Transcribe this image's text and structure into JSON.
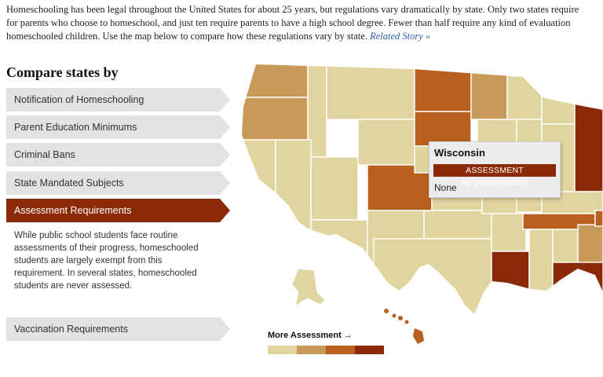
{
  "intro": {
    "line1": "Homeschooling has been legal throughout the United States for about 25 years, but regulations vary dramatically by state. Only two states require",
    "line2": "for parents who choose to homeschool, and just ten require parents to have a high school degree. Fewer than half require any kind of evaluation",
    "line3": "homeschooled children. Use the map below to compare how these regulations vary by state.",
    "link": "Related Story »"
  },
  "sidebar": {
    "title": "Compare states by",
    "items": [
      {
        "label": "Notification of Homeschooling",
        "active": false
      },
      {
        "label": "Parent Education Minimums",
        "active": false
      },
      {
        "label": "Criminal Bans",
        "active": false
      },
      {
        "label": "State Mandated Subjects",
        "active": false
      },
      {
        "label": "Assessment Requirements",
        "active": true
      },
      {
        "label": "Vaccination Requirements",
        "active": false
      }
    ],
    "description": "While public school students face routine assessments of their progress, homeschooled students are largely exempt from this requirement. In several states, homeschooled students are never assessed."
  },
  "tooltip": {
    "state": "Wisconsin",
    "category": "ASSESSMENT REQUIREMENTS",
    "value": "None"
  },
  "legend": {
    "label": "More Assessment →",
    "colors": [
      "#e1d59f",
      "#c89a5a",
      "#b9601e",
      "#8b2a07"
    ]
  },
  "map": {
    "states": [
      {
        "name": "WA",
        "level": 1
      },
      {
        "name": "OR",
        "level": 1
      },
      {
        "name": "CA",
        "level": 0
      },
      {
        "name": "ID",
        "level": 0
      },
      {
        "name": "NV",
        "level": 0
      },
      {
        "name": "MT",
        "level": 0
      },
      {
        "name": "WY",
        "level": 0
      },
      {
        "name": "UT",
        "level": 0
      },
      {
        "name": "AZ",
        "level": 0
      },
      {
        "name": "CO",
        "level": 2
      },
      {
        "name": "NM",
        "level": 0
      },
      {
        "name": "ND",
        "level": 2
      },
      {
        "name": "SD",
        "level": 2
      },
      {
        "name": "NE",
        "level": 0
      },
      {
        "name": "KS",
        "level": 0
      },
      {
        "name": "OK",
        "level": 0
      },
      {
        "name": "TX",
        "level": 0
      },
      {
        "name": "MN",
        "level": 1
      },
      {
        "name": "IA",
        "level": 0
      },
      {
        "name": "MO",
        "level": 0
      },
      {
        "name": "AR",
        "level": 0
      },
      {
        "name": "LA",
        "level": 3
      },
      {
        "name": "WI",
        "level": 0
      },
      {
        "name": "IL",
        "level": 0
      },
      {
        "name": "MI",
        "level": 0
      },
      {
        "name": "IN",
        "level": 0
      },
      {
        "name": "OH",
        "level": 3
      },
      {
        "name": "KY",
        "level": 0
      },
      {
        "name": "TN",
        "level": 2
      },
      {
        "name": "MS",
        "level": 0
      },
      {
        "name": "AL",
        "level": 0
      },
      {
        "name": "GA",
        "level": 1
      },
      {
        "name": "FL",
        "level": 3
      },
      {
        "name": "SC",
        "level": 2
      },
      {
        "name": "NC",
        "level": 2
      },
      {
        "name": "AK",
        "level": 0
      },
      {
        "name": "HI",
        "level": 2
      }
    ]
  }
}
